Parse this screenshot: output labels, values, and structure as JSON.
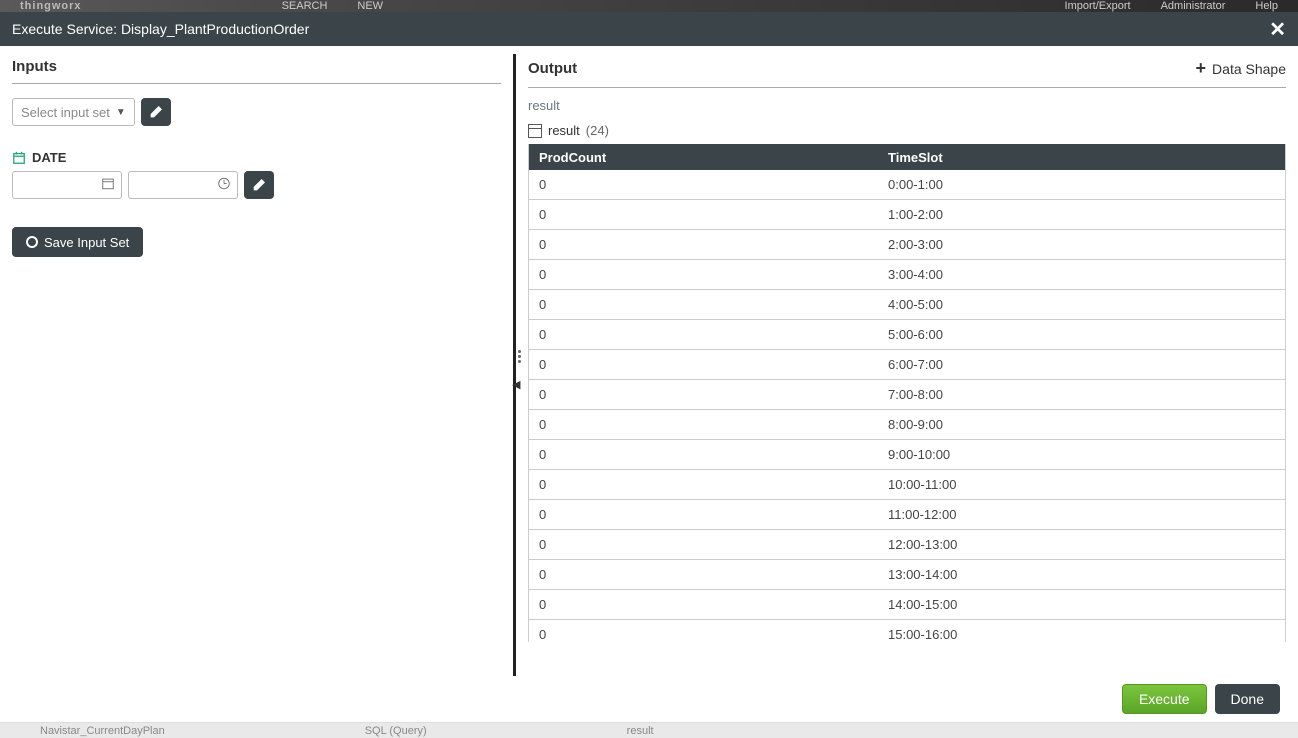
{
  "topbar": {
    "logo": "thingworx",
    "search": "SEARCH",
    "new": "NEW",
    "import": "Import/Export",
    "admin": "Administrator",
    "help": "Help"
  },
  "titlebar": {
    "text": "Execute Service: Display_PlantProductionOrder"
  },
  "inputs": {
    "title": "Inputs",
    "select_placeholder": "Select input set",
    "date_label": "DATE",
    "save_label": "Save Input Set"
  },
  "output": {
    "title": "Output",
    "data_shape": "Data Shape",
    "result_label": "result",
    "result_name": "result",
    "result_count": "(24)",
    "columns": {
      "prod": "ProdCount",
      "time": "TimeSlot"
    },
    "rows": [
      {
        "prod": "0",
        "time": "0:00-1:00"
      },
      {
        "prod": "0",
        "time": "1:00-2:00"
      },
      {
        "prod": "0",
        "time": "2:00-3:00"
      },
      {
        "prod": "0",
        "time": "3:00-4:00"
      },
      {
        "prod": "0",
        "time": "4:00-5:00"
      },
      {
        "prod": "0",
        "time": "5:00-6:00"
      },
      {
        "prod": "0",
        "time": "6:00-7:00"
      },
      {
        "prod": "0",
        "time": "7:00-8:00"
      },
      {
        "prod": "0",
        "time": "8:00-9:00"
      },
      {
        "prod": "0",
        "time": "9:00-10:00"
      },
      {
        "prod": "0",
        "time": "10:00-11:00"
      },
      {
        "prod": "0",
        "time": "11:00-12:00"
      },
      {
        "prod": "0",
        "time": "12:00-13:00"
      },
      {
        "prod": "0",
        "time": "13:00-14:00"
      },
      {
        "prod": "0",
        "time": "14:00-15:00"
      },
      {
        "prod": "0",
        "time": "15:00-16:00"
      }
    ]
  },
  "footer": {
    "execute": "Execute",
    "done": "Done"
  },
  "background": {
    "item1": "Navistar_CurrentDayPlan",
    "item2": "SQL (Query)",
    "item3": "result"
  }
}
